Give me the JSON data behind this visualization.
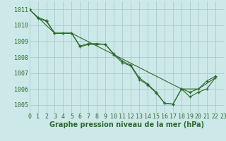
{
  "xlabel": "Graphe pression niveau de la mer (hPa)",
  "xlim": [
    0,
    23
  ],
  "ylim": [
    1004.5,
    1011.5
  ],
  "yticks": [
    1005,
    1006,
    1007,
    1008,
    1009,
    1010,
    1011
  ],
  "xticks": [
    0,
    1,
    2,
    3,
    4,
    5,
    6,
    7,
    8,
    9,
    10,
    11,
    12,
    13,
    14,
    15,
    16,
    17,
    18,
    19,
    20,
    21,
    22,
    23
  ],
  "bg_color": "#cce8e8",
  "grid_color": "#aacccc",
  "line_color": "#2d6a2d",
  "line1_x": [
    0,
    1,
    2,
    3,
    4,
    5,
    6,
    7,
    8,
    9,
    10,
    11,
    12,
    13,
    14,
    15,
    16,
    17,
    18,
    19,
    20,
    21,
    22
  ],
  "line1_y": [
    1011.0,
    1010.5,
    1010.3,
    1009.5,
    1009.5,
    1009.5,
    1008.7,
    1008.85,
    1008.85,
    1008.8,
    1008.2,
    1007.75,
    1007.5,
    1006.7,
    1006.3,
    1005.8,
    1005.1,
    1005.05,
    1006.0,
    1005.8,
    1006.0,
    1006.5,
    1006.8
  ],
  "line2_x": [
    0,
    1,
    2,
    3,
    4,
    5,
    6,
    7,
    8,
    9,
    10,
    11,
    12,
    13,
    14,
    15,
    16,
    17,
    18,
    19,
    20,
    21,
    22
  ],
  "line2_y": [
    1011.0,
    1010.45,
    1010.25,
    1009.5,
    1009.5,
    1009.5,
    1008.65,
    1008.8,
    1008.8,
    1008.8,
    1008.15,
    1007.65,
    1007.45,
    1006.6,
    1006.25,
    1005.75,
    1005.1,
    1005.05,
    1006.0,
    1005.5,
    1005.8,
    1006.0,
    1006.7
  ],
  "line3_x": [
    0,
    3,
    5,
    18,
    20,
    22
  ],
  "line3_y": [
    1011.0,
    1009.5,
    1009.5,
    1006.0,
    1006.0,
    1006.7
  ],
  "tick_fontsize": 6,
  "label_fontsize": 7
}
